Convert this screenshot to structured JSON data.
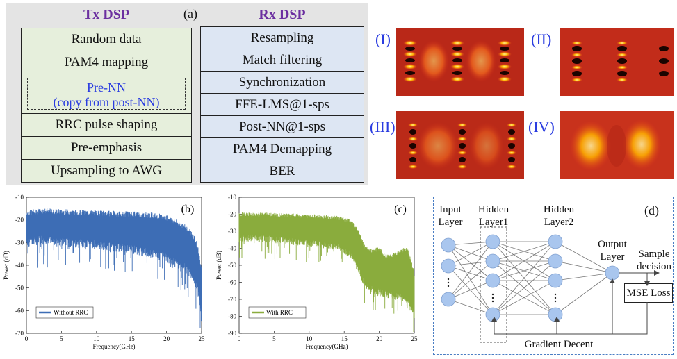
{
  "panel_a": {
    "label": "(a)",
    "tx_title": "Tx DSP",
    "rx_title": "Rx DSP",
    "tx_steps": [
      "Random data",
      "PAM4 mapping",
      "RRC pulse shaping",
      "Pre-emphasis",
      "Upsampling to AWG"
    ],
    "pre_nn": [
      "Pre-NN",
      "(copy from post-NN)"
    ],
    "rx_steps": [
      "Resampling",
      "Match filtering",
      "Synchronization",
      "FFE-LMS@1-sps",
      "Post-NN@1-sps",
      "PAM4 Demapping",
      "BER"
    ]
  },
  "eyes": {
    "labels": [
      "(I)",
      "(II)",
      "(III)",
      "(IV)"
    ]
  },
  "chart_data": [
    {
      "type": "area",
      "panel_label": "(b)",
      "xlabel": "Frequency(GHz)",
      "ylabel": "Power (dB)",
      "xlim": [
        0,
        25
      ],
      "ylim": [
        -70,
        -10
      ],
      "xticks": [
        0,
        5,
        10,
        15,
        20,
        25
      ],
      "yticks": [
        -10,
        -20,
        -30,
        -40,
        -50,
        -60,
        -70
      ],
      "series": [
        {
          "name": "Without RRC",
          "color": "#3d6db5",
          "envelope_x": [
            0,
            2,
            5,
            10,
            15,
            18,
            20,
            22,
            23,
            24,
            24.5,
            25
          ],
          "envelope_top": [
            -17,
            -16,
            -16.5,
            -17,
            -17.5,
            -18,
            -19,
            -22,
            -24,
            -28,
            -33,
            -42
          ],
          "envelope_base": [
            -28,
            -27,
            -28,
            -29,
            -31,
            -33,
            -35,
            -38,
            -40,
            -44,
            -50,
            -60
          ]
        }
      ]
    },
    {
      "type": "area",
      "panel_label": "(c)",
      "xlabel": "Frequency(GHz)",
      "ylabel": "Power (dB)",
      "xlim": [
        0,
        25
      ],
      "ylim": [
        -90,
        -10
      ],
      "xticks": [
        0,
        5,
        10,
        15,
        20,
        25
      ],
      "yticks": [
        -10,
        -20,
        -30,
        -40,
        -50,
        -60,
        -70,
        -80,
        -90
      ],
      "series": [
        {
          "name": "With RRC",
          "color": "#8aac3d",
          "envelope_x": [
            0,
            2,
            5,
            10,
            14,
            16,
            17,
            18,
            19,
            20,
            21,
            22,
            23,
            24,
            25
          ],
          "envelope_top": [
            -20,
            -20,
            -20.5,
            -21,
            -22,
            -24,
            -30,
            -40,
            -42,
            -40,
            -45,
            -44,
            -42,
            -40,
            -55
          ],
          "envelope_base": [
            -33,
            -32,
            -33,
            -35,
            -37,
            -42,
            -50,
            -60,
            -62,
            -64,
            -65,
            -66,
            -67,
            -68,
            -78
          ]
        }
      ]
    }
  ],
  "panel_d": {
    "label": "(d)",
    "input_layer": [
      "Input",
      "Layer"
    ],
    "hidden1": [
      "Hidden",
      "Layer1"
    ],
    "hidden2": [
      "Hidden",
      "Layer2"
    ],
    "output_layer": [
      "Output",
      "Layer"
    ],
    "sample_decision": [
      "Sample",
      "decision"
    ],
    "mse_loss": "MSE Loss",
    "gradient": "Gradient Decent"
  }
}
